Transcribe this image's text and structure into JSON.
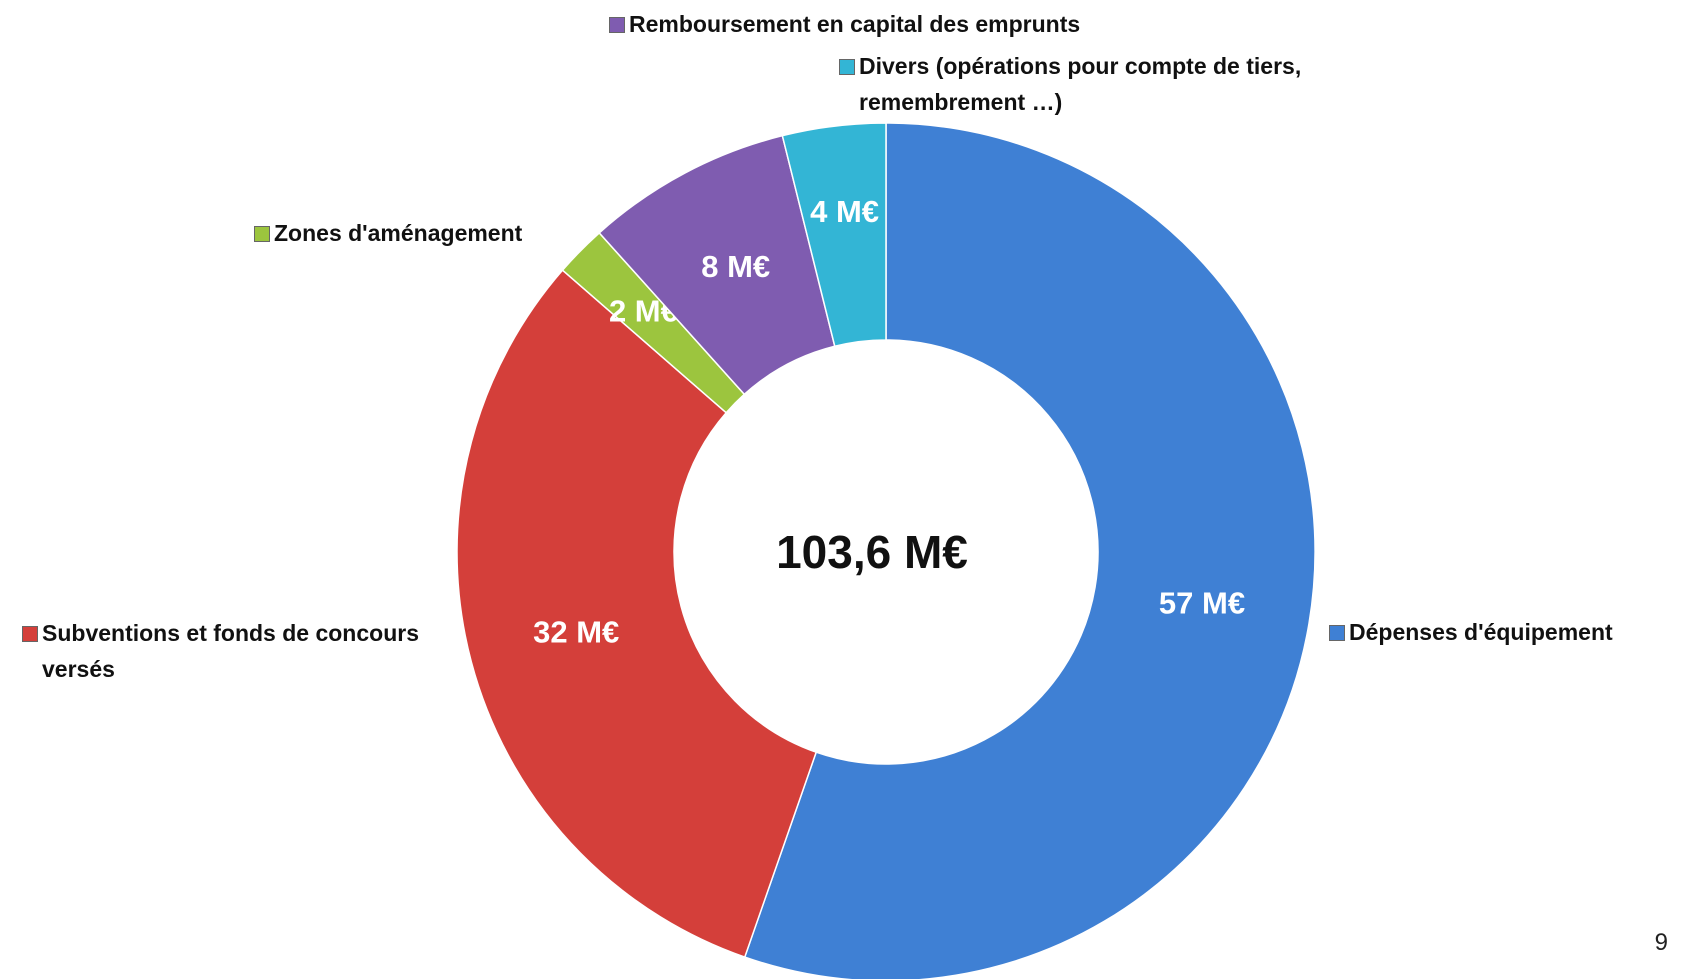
{
  "chart_data": {
    "type": "donut",
    "categories": [
      "Dépenses d'équipement",
      "Subventions et fonds de concours versés",
      "Zones d'aménagement",
      "Remboursement en capital des emprunts",
      "Divers (opérations pour compte de tiers, remembrement …)"
    ],
    "values": [
      57,
      32,
      2,
      8,
      4
    ],
    "value_labels": [
      "57 M€",
      "32 M€",
      "2 M€",
      "8 M€",
      "4 M€"
    ],
    "colors": [
      "#3f80d4",
      "#d43f3a",
      "#9cc53e",
      "#7f5cb0",
      "#33b5d5"
    ],
    "total_label": "103,6 M€"
  },
  "page_number": "9"
}
